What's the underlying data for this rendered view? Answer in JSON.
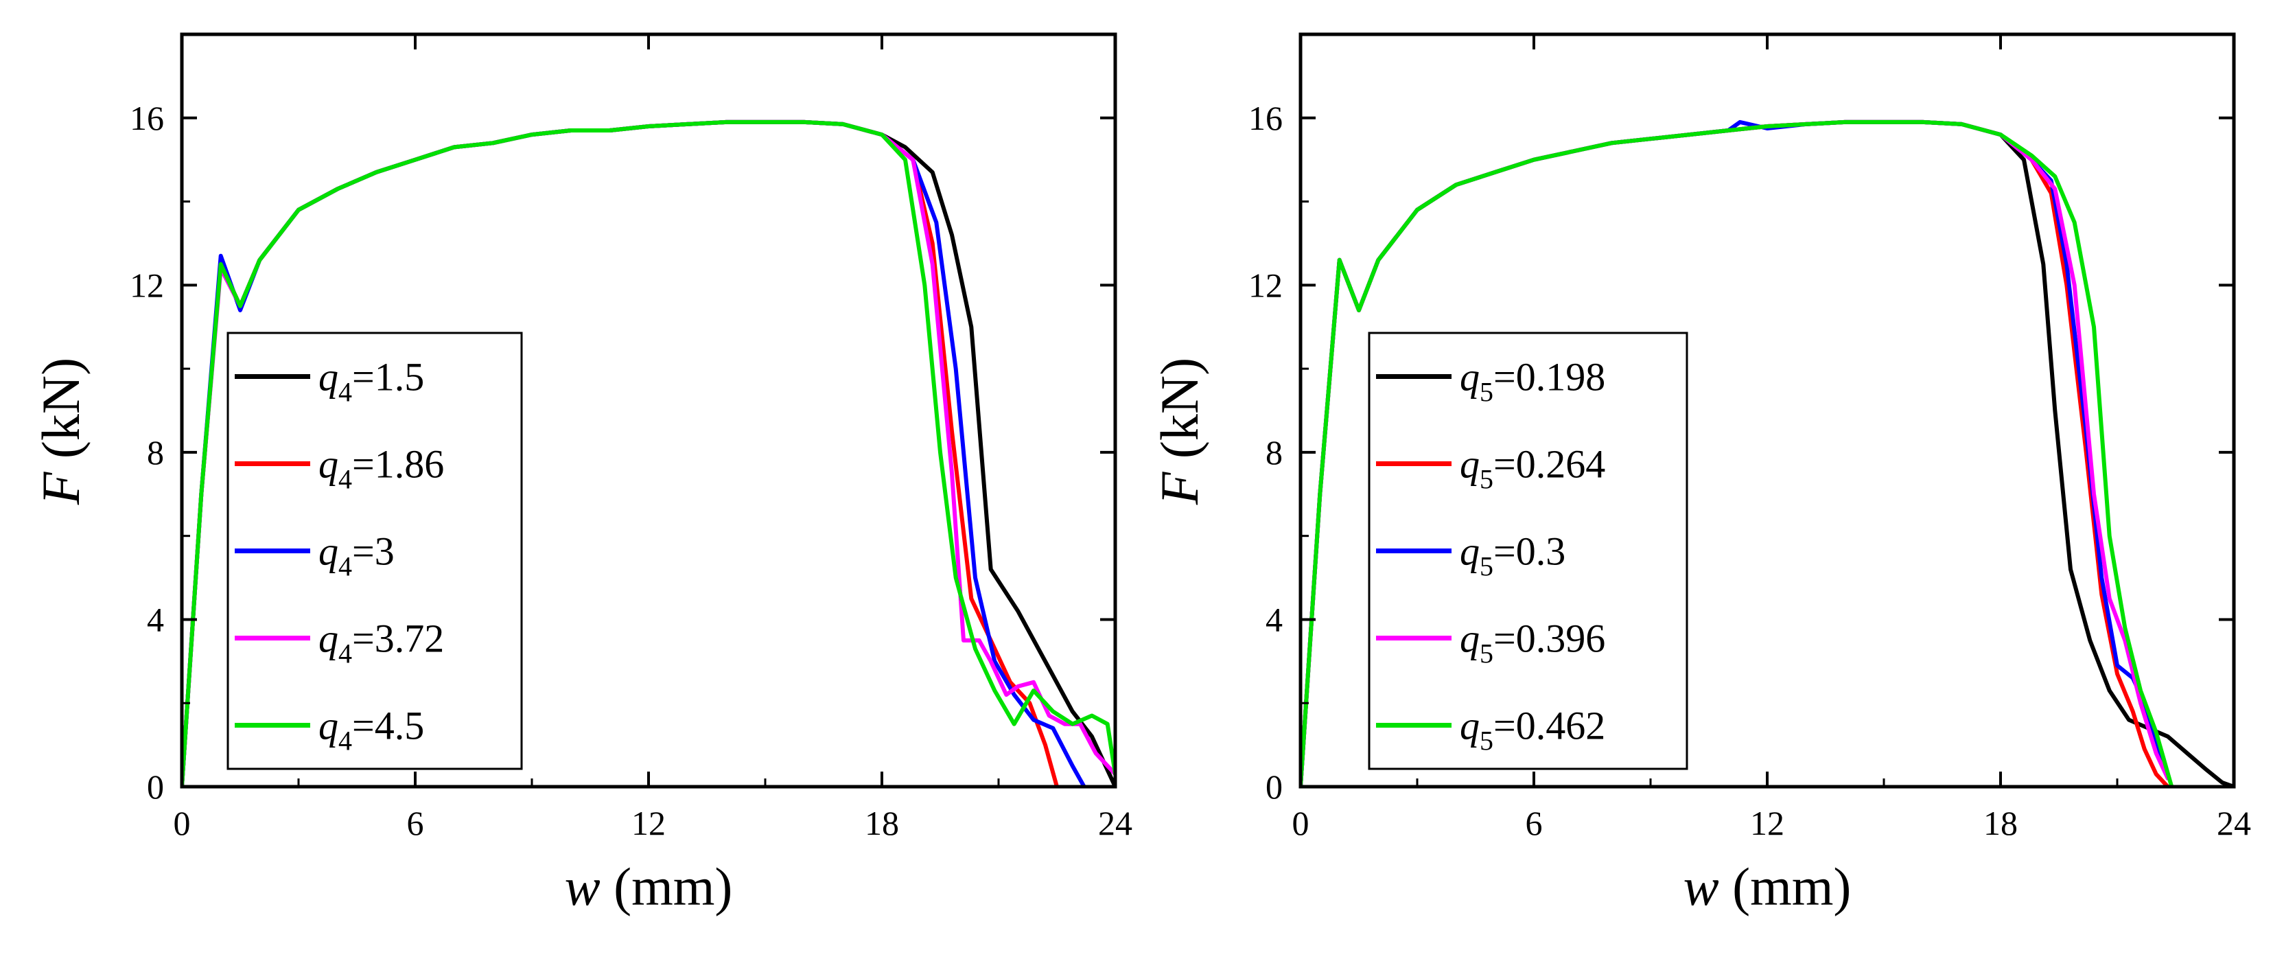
{
  "chart_data": [
    {
      "type": "line",
      "xlabel_var": "w",
      "xlabel_unit": "(mm)",
      "ylabel_var": "F",
      "ylabel_unit": "(kN)",
      "xlim": [
        0,
        24
      ],
      "ylim": [
        0,
        18
      ],
      "xticks": [
        0,
        6,
        12,
        18,
        24
      ],
      "yticks": [
        0,
        4,
        8,
        12,
        16
      ],
      "legend_location": "lower-left",
      "param_symbol": "q",
      "param_sub": "4",
      "series": [
        {
          "name": "1.5",
          "color": "#000000",
          "x": [
            0,
            0.5,
            1,
            1.5,
            2,
            3,
            4,
            5,
            6,
            7,
            8,
            9,
            10,
            11,
            12,
            13,
            14,
            15,
            16,
            17,
            18,
            18.6,
            19.3,
            19.8,
            20.3,
            20.8,
            21.5,
            22.2,
            22.9,
            23.4,
            24
          ],
          "y": [
            0,
            7,
            12.5,
            11.5,
            12.6,
            13.8,
            14.3,
            14.7,
            15.0,
            15.3,
            15.4,
            15.6,
            15.7,
            15.7,
            15.8,
            15.85,
            15.9,
            15.9,
            15.9,
            15.85,
            15.6,
            15.3,
            14.7,
            13.2,
            11.0,
            5.2,
            4.2,
            3.0,
            1.8,
            1.2,
            0
          ]
        },
        {
          "name": "1.86",
          "color": "#ff0000",
          "x": [
            0,
            0.5,
            1,
            1.5,
            2,
            3,
            4,
            5,
            6,
            7,
            8,
            9,
            10,
            11,
            12,
            13,
            14,
            15,
            16,
            17,
            18,
            18.8,
            19.3,
            19.8,
            20.3,
            20.8,
            21.3,
            21.8,
            22.2,
            22.5
          ],
          "y": [
            0,
            7,
            12.5,
            11.5,
            12.6,
            13.8,
            14.3,
            14.7,
            15.0,
            15.3,
            15.4,
            15.6,
            15.7,
            15.7,
            15.8,
            15.85,
            15.9,
            15.9,
            15.9,
            15.85,
            15.6,
            15.0,
            13.0,
            8.5,
            4.5,
            3.5,
            2.5,
            2.0,
            1.0,
            0
          ]
        },
        {
          "name": "3",
          "color": "#0000ff",
          "x": [
            0,
            0.5,
            1,
            1.5,
            2,
            3,
            4,
            5,
            6,
            7,
            8,
            9,
            10,
            11,
            12,
            13,
            14,
            15,
            16,
            17,
            18,
            18.8,
            19.4,
            19.9,
            20.4,
            20.9,
            21.4,
            21.9,
            22.4,
            22.9,
            23.2
          ],
          "y": [
            0,
            7,
            12.7,
            11.4,
            12.6,
            13.8,
            14.3,
            14.7,
            15.0,
            15.3,
            15.4,
            15.6,
            15.7,
            15.7,
            15.8,
            15.85,
            15.9,
            15.9,
            15.9,
            15.85,
            15.6,
            15.0,
            13.5,
            10.0,
            5.0,
            3.0,
            2.2,
            1.6,
            1.4,
            0.5,
            0
          ]
        },
        {
          "name": "3.72",
          "color": "#ff00ff",
          "x": [
            0,
            0.5,
            1,
            1.5,
            2,
            3,
            4,
            5,
            6,
            7,
            8,
            9,
            10,
            11,
            12,
            13,
            14,
            15,
            16,
            17,
            18,
            18.8,
            19.3,
            19.8,
            20.1,
            20.5,
            20.8,
            21.2,
            21.5,
            21.9,
            22.3,
            22.7,
            23.1,
            23.5,
            24
          ],
          "y": [
            0,
            7,
            12.4,
            11.5,
            12.6,
            13.8,
            14.3,
            14.7,
            15.0,
            15.3,
            15.4,
            15.6,
            15.7,
            15.7,
            15.8,
            15.85,
            15.9,
            15.9,
            15.9,
            15.85,
            15.6,
            15.0,
            12.5,
            7.5,
            3.5,
            3.5,
            3.0,
            2.2,
            2.4,
            2.5,
            1.7,
            1.5,
            1.5,
            0.8,
            0.3
          ]
        },
        {
          "name": "4.5",
          "color": "#00e000",
          "x": [
            0,
            0.5,
            1,
            1.5,
            2,
            3,
            4,
            5,
            6,
            7,
            8,
            9,
            10,
            11,
            12,
            13,
            14,
            15,
            16,
            17,
            18,
            18.6,
            19.1,
            19.5,
            19.9,
            20.4,
            20.9,
            21.4,
            21.9,
            22.4,
            22.9,
            23.4,
            23.8,
            24
          ],
          "y": [
            0,
            7,
            12.5,
            11.5,
            12.6,
            13.8,
            14.3,
            14.7,
            15.0,
            15.3,
            15.4,
            15.6,
            15.7,
            15.7,
            15.8,
            15.85,
            15.9,
            15.9,
            15.9,
            15.85,
            15.6,
            15.0,
            12.0,
            8.0,
            5.0,
            3.3,
            2.3,
            1.5,
            2.3,
            1.8,
            1.5,
            1.7,
            1.5,
            0.3
          ]
        }
      ]
    },
    {
      "type": "line",
      "xlabel_var": "w",
      "xlabel_unit": "(mm)",
      "ylabel_var": "F",
      "ylabel_unit": "(kN)",
      "xlim": [
        0,
        24
      ],
      "ylim": [
        0,
        18
      ],
      "xticks": [
        0,
        6,
        12,
        18,
        24
      ],
      "yticks": [
        0,
        4,
        8,
        12,
        16
      ],
      "legend_location": "lower-left",
      "param_symbol": "q",
      "param_sub": "5",
      "series": [
        {
          "name": "0.198",
          "color": "#000000",
          "x": [
            0,
            0.5,
            1,
            1.5,
            2,
            3,
            4,
            5,
            6,
            7,
            8,
            9,
            10,
            11,
            12,
            13,
            14,
            15,
            16,
            17,
            18,
            18.6,
            19.1,
            19.4,
            19.8,
            20.3,
            20.8,
            21.3,
            21.8,
            22.3,
            22.8,
            23.3,
            23.7,
            24
          ],
          "y": [
            0,
            7,
            12.6,
            11.4,
            12.6,
            13.8,
            14.4,
            14.7,
            15.0,
            15.2,
            15.4,
            15.5,
            15.6,
            15.7,
            15.8,
            15.85,
            15.9,
            15.9,
            15.9,
            15.85,
            15.6,
            15.0,
            12.5,
            9.0,
            5.2,
            3.5,
            2.3,
            1.6,
            1.4,
            1.2,
            0.8,
            0.4,
            0.1,
            0
          ]
        },
        {
          "name": "0.264",
          "color": "#ff0000",
          "x": [
            0,
            0.5,
            1,
            1.5,
            2,
            3,
            4,
            5,
            6,
            7,
            8,
            9,
            10,
            11,
            12,
            13,
            14,
            15,
            16,
            17,
            18,
            18.8,
            19.3,
            19.7,
            20.2,
            20.6,
            21.0,
            21.4,
            21.7,
            22.0,
            22.3
          ],
          "y": [
            0,
            7,
            12.6,
            11.4,
            12.6,
            13.8,
            14.4,
            14.7,
            15.0,
            15.2,
            15.4,
            15.5,
            15.6,
            15.7,
            15.8,
            15.85,
            15.9,
            15.9,
            15.9,
            15.85,
            15.6,
            15.0,
            14.2,
            12.0,
            8.0,
            4.6,
            2.7,
            1.8,
            0.9,
            0.3,
            0
          ]
        },
        {
          "name": "0.3",
          "color": "#0000ff",
          "x": [
            0,
            0.5,
            1,
            1.5,
            2,
            3,
            4,
            5,
            6,
            7,
            8,
            9,
            10,
            11,
            11.3,
            12,
            13,
            14,
            15,
            16,
            17,
            18,
            18.8,
            19.3,
            19.7,
            20.2,
            20.6,
            21.0,
            21.4,
            21.7,
            22.0,
            22.3
          ],
          "y": [
            0,
            7,
            12.6,
            11.4,
            12.6,
            13.8,
            14.4,
            14.7,
            15.0,
            15.2,
            15.4,
            15.5,
            15.6,
            15.7,
            15.9,
            15.75,
            15.85,
            15.9,
            15.9,
            15.9,
            15.85,
            15.6,
            15.0,
            14.5,
            12.5,
            8.5,
            5.0,
            2.9,
            2.6,
            2.0,
            1.0,
            0.3
          ]
        },
        {
          "name": "0.396",
          "color": "#ff00ff",
          "x": [
            0,
            0.5,
            1,
            1.5,
            2,
            3,
            4,
            5,
            6,
            7,
            8,
            9,
            10,
            11,
            12,
            13,
            14,
            15,
            16,
            17,
            18,
            18.8,
            19.4,
            19.9,
            20.4,
            20.8,
            21.2,
            21.6,
            22.0,
            22.3
          ],
          "y": [
            0,
            7,
            12.6,
            11.4,
            12.6,
            13.8,
            14.4,
            14.7,
            15.0,
            15.2,
            15.4,
            15.5,
            15.6,
            15.7,
            15.8,
            15.85,
            15.9,
            15.9,
            15.9,
            15.85,
            15.6,
            15.0,
            14.3,
            12.0,
            7.0,
            4.5,
            3.5,
            2.0,
            0.8,
            0.2
          ]
        },
        {
          "name": "0.462",
          "color": "#00e000",
          "x": [
            0,
            0.5,
            1,
            1.5,
            2,
            3,
            4,
            5,
            6,
            7,
            8,
            9,
            10,
            11,
            12,
            13,
            14,
            15,
            16,
            17,
            18,
            18.8,
            19.4,
            19.9,
            20.4,
            20.8,
            21.2,
            21.6,
            22.0,
            22.4
          ],
          "y": [
            0,
            7,
            12.6,
            11.4,
            12.6,
            13.8,
            14.4,
            14.7,
            15.0,
            15.2,
            15.4,
            15.5,
            15.6,
            15.7,
            15.8,
            15.85,
            15.9,
            15.9,
            15.9,
            15.85,
            15.6,
            15.1,
            14.6,
            13.5,
            11.0,
            6.0,
            3.8,
            2.3,
            1.3,
            0
          ]
        }
      ]
    }
  ]
}
